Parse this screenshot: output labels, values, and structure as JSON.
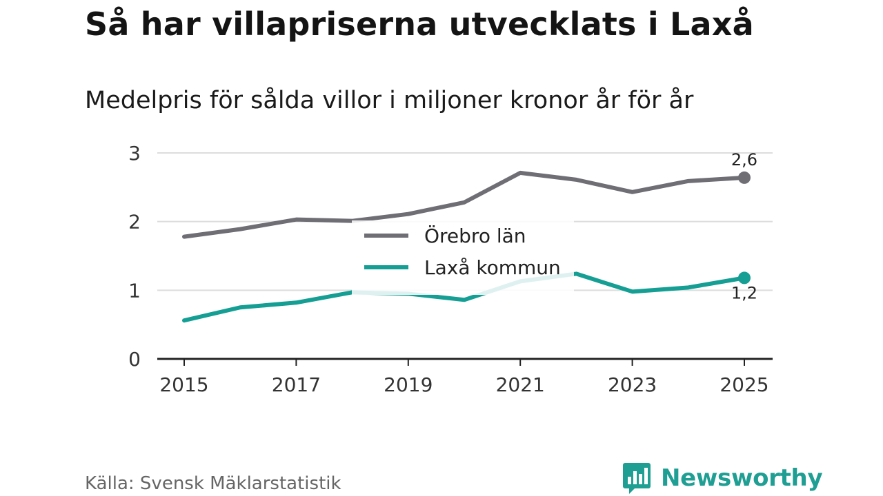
{
  "header": {
    "title": "Så har villapriserna utvecklats i Laxå",
    "subtitle": "Medelpris för sålda villor i miljoner kronor år för år"
  },
  "footer": {
    "source": "Källa: Svensk Mäklarstatistik",
    "brand": "Newsworthy"
  },
  "colors": {
    "orebro": "#6f6e75",
    "laxa": "#159f94",
    "grid": "#dddddd",
    "axis": "#222222",
    "brand": "#1f9e93"
  },
  "chart_data": {
    "type": "line",
    "title": "Så har villapriserna utvecklats i Laxå",
    "subtitle": "Medelpris för sålda villor i miljoner kronor år för år",
    "xlabel": "",
    "ylabel": "",
    "x": [
      2015,
      2016,
      2017,
      2018,
      2019,
      2020,
      2021,
      2022,
      2023,
      2024,
      2025
    ],
    "xticks": [
      "2015",
      "2017",
      "2019",
      "2021",
      "2023",
      "2025"
    ],
    "yticks": [
      "0",
      "1",
      "2",
      "3"
    ],
    "ylim": [
      0,
      3
    ],
    "xlim": [
      2014.5,
      2025.5
    ],
    "grid": true,
    "legend_position": "center",
    "series": [
      {
        "name": "Örebro län",
        "color": "#6f6e75",
        "values": [
          1.78,
          1.89,
          2.03,
          2.01,
          2.11,
          2.28,
          2.71,
          2.61,
          2.43,
          2.59,
          2.64
        ],
        "end_label": "2,6"
      },
      {
        "name": "Laxå kommun",
        "color": "#159f94",
        "values": [
          0.56,
          0.75,
          0.82,
          0.97,
          0.95,
          0.86,
          1.13,
          1.24,
          0.98,
          1.04,
          1.18
        ],
        "end_label": "1,2"
      }
    ]
  }
}
